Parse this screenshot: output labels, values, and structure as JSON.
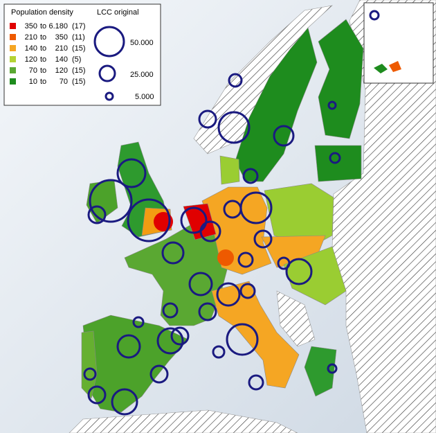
{
  "legend": {
    "density_title": "Population density",
    "symbol_title": "LCC original",
    "classes": [
      {
        "from": "350",
        "word": "to",
        "to": "6.180",
        "count": "(17)",
        "color": "#e00000"
      },
      {
        "from": "210",
        "word": "to",
        "to": "350",
        "count": "(11)",
        "color": "#ee5a00"
      },
      {
        "from": "140",
        "word": "to",
        "to": "210",
        "count": "(15)",
        "color": "#f5a623"
      },
      {
        "from": "120",
        "word": "to",
        "to": "140",
        "count": "(5)",
        "color": "#b5d334"
      },
      {
        "from": "70",
        "word": "to",
        "to": "120",
        "count": "(15)",
        "color": "#5aa832"
      },
      {
        "from": "10",
        "word": "to",
        "to": "70",
        "count": "(15)",
        "color": "#1e8c1e"
      }
    ],
    "symbols": [
      "50.000",
      "25.000",
      "5.000"
    ]
  }
}
